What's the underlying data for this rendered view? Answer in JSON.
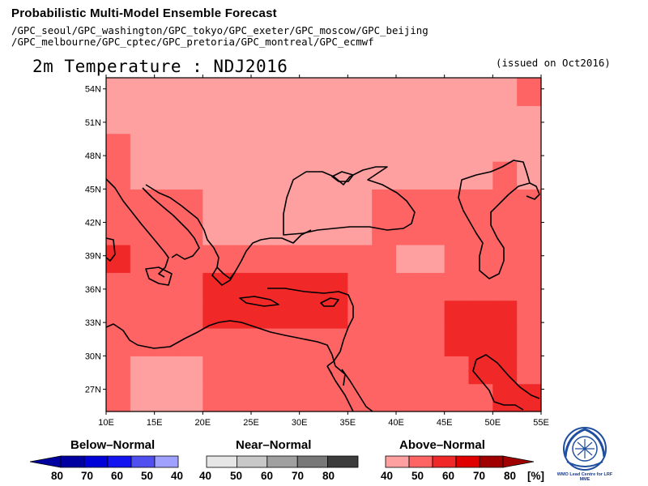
{
  "header": {
    "title": "Probabilistic Multi-Model Ensemble Forecast",
    "subtitle_lines": [
      "/GPC_seoul/GPC_washington/GPC_tokyo/GPC_exeter/GPC_moscow/GPC_beijing",
      "/GPC_melbourne/GPC_cptec/GPC_pretoria/GPC_montreal/GPC_ecmwf"
    ],
    "variable_title": "2m Temperature : NDJ2016",
    "issued": "(issued on Oct2016)"
  },
  "map": {
    "lon_range": [
      10,
      55
    ],
    "lat_range": [
      25,
      55
    ],
    "lat_ticks": [
      "54N",
      "51N",
      "48N",
      "45N",
      "42N",
      "39N",
      "36N",
      "33N",
      "30N",
      "27N"
    ],
    "lon_ticks": [
      "10E",
      "15E",
      "20E",
      "25E",
      "30E",
      "35E",
      "40E",
      "45E",
      "50E",
      "55E"
    ]
  },
  "legend": {
    "below": {
      "title": "Below–Normal",
      "ticks": [
        "80",
        "70",
        "60",
        "50",
        "40"
      ],
      "colors": [
        "#0000a0",
        "#0000d8",
        "#1414f0",
        "#5050f0",
        "#a0a0ff"
      ]
    },
    "near": {
      "title": "Near–Normal",
      "ticks": [
        "40",
        "50",
        "60",
        "70",
        "80"
      ],
      "colors": [
        "#e6e6e6",
        "#c8c8c8",
        "#a0a0a0",
        "#787878",
        "#3c3c3c"
      ]
    },
    "above": {
      "title": "Above–Normal",
      "ticks": [
        "40",
        "50",
        "60",
        "70",
        "80"
      ],
      "unit": "[%]",
      "colors": [
        "#ffa0a0",
        "#ff6464",
        "#f02828",
        "#e00000",
        "#a00000"
      ]
    }
  },
  "logo": {
    "caption": "WMO Lead Centre for LRF MME"
  }
}
